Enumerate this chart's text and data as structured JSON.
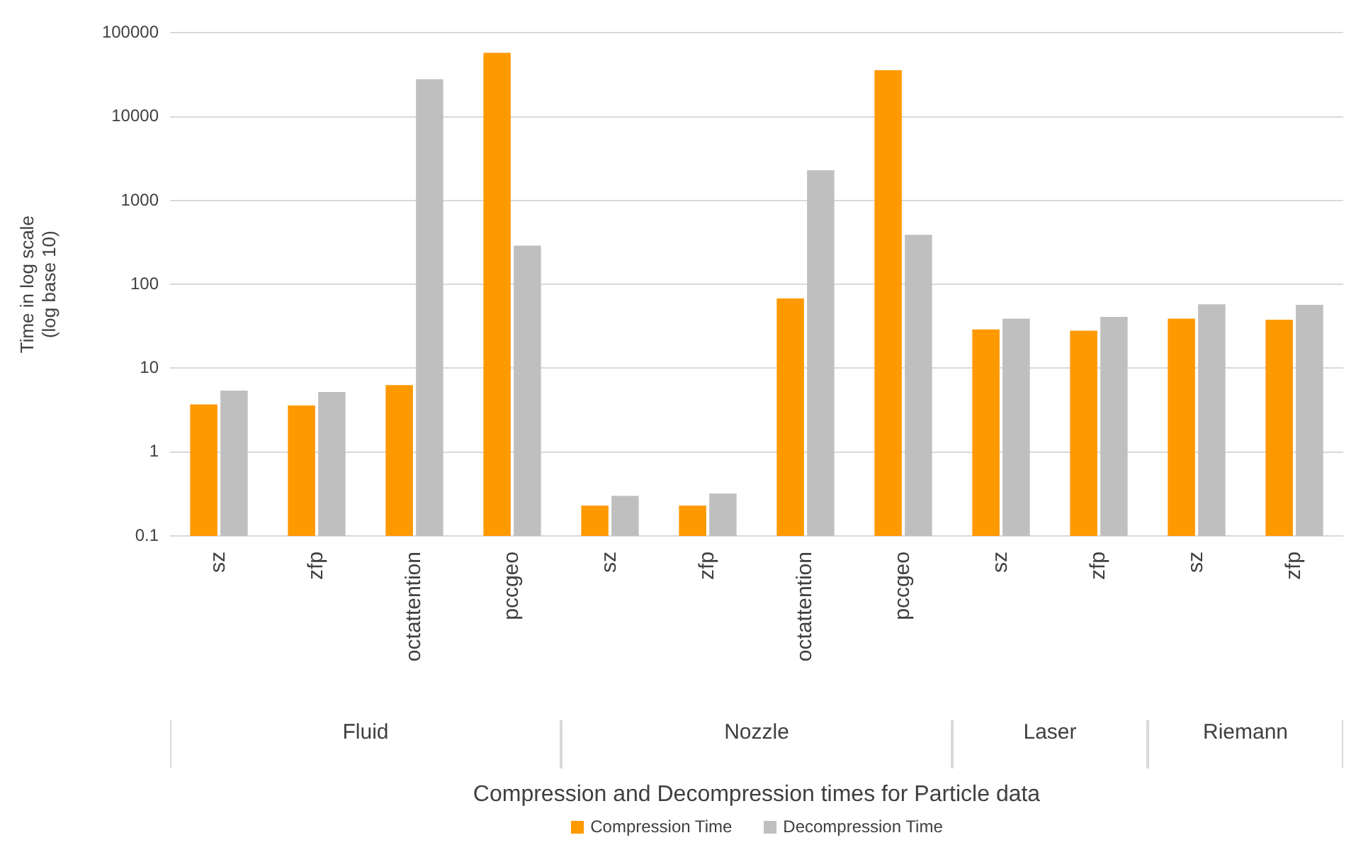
{
  "chart_data": [
    {
      "type": "bar",
      "xlabel": "Fluid",
      "ylabel": "Time in log scale\n(log base 10)",
      "categories": [
        "sz",
        "zfp",
        "octattention",
        "pccgeo"
      ],
      "log": true,
      "ylim": [
        0.1,
        100000
      ],
      "yticks": [
        0.1,
        1,
        10,
        100,
        1000,
        10000,
        100000
      ],
      "grid": "y",
      "legend": "bottom",
      "annotations": [
        "Compression and Decompression times for Particle data"
      ],
      "series": [
        {
          "name": "Compression Time",
          "color": "#ff9900",
          "values": [
            3.7,
            3.6,
            6.3,
            58000
          ]
        },
        {
          "name": "Decompression Time",
          "color": "#bfbfbf",
          "values": [
            5.4,
            5.2,
            28000,
            290
          ]
        }
      ]
    },
    {
      "type": "bar",
      "xlabel": "Nozzle",
      "categories": [
        "sz",
        "zfp",
        "octattention",
        "pccgeo"
      ],
      "log": true,
      "ylim": [
        0.1,
        100000
      ],
      "yticks": [
        0.1,
        1,
        10,
        100,
        1000,
        10000,
        100000
      ],
      "grid": "y",
      "tick_labels": "x",
      "series": [
        {
          "color": "#ff9900",
          "values": [
            0.23,
            0.23,
            68,
            36000
          ]
        },
        {
          "color": "#bfbfbf",
          "values": [
            0.3,
            0.32,
            2300,
            390
          ]
        }
      ]
    },
    {
      "type": "bar",
      "xlabel": "Laser",
      "categories": [
        "sz",
        "zfp"
      ],
      "log": true,
      "ylim": [
        0.1,
        100000
      ],
      "yticks": [
        0.1,
        1,
        10,
        100,
        1000,
        10000,
        100000
      ],
      "grid": "y",
      "tick_labels": "x",
      "series": [
        {
          "color": "#ff9900",
          "values": [
            29,
            28
          ]
        },
        {
          "color": "#bfbfbf",
          "values": [
            39,
            41
          ]
        }
      ]
    },
    {
      "type": "bar",
      "xlabel": "Riemann",
      "categories": [
        "sz",
        "zfp"
      ],
      "log": true,
      "ylim": [
        0.1,
        100000
      ],
      "yticks": [
        0.1,
        1,
        10,
        100,
        1000,
        10000,
        100000
      ],
      "grid": "y",
      "tick_labels": "x",
      "series": [
        {
          "color": "#ff9900",
          "values": [
            39,
            38
          ]
        },
        {
          "color": "#bfbfbf",
          "values": [
            58,
            57
          ]
        }
      ]
    }
  ]
}
